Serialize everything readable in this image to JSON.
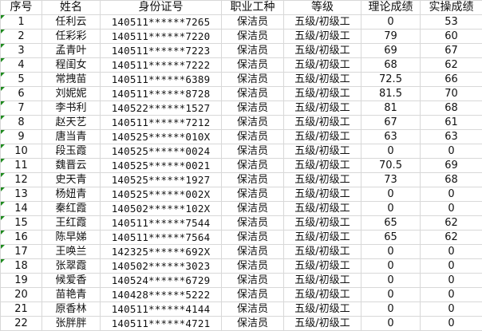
{
  "columns": [
    "序号",
    "姓名",
    "身份证号",
    "职业工种",
    "等级",
    "理论成绩",
    "实操成绩"
  ],
  "rows": [
    [
      "1",
      "任利云",
      "140511******7265",
      "保洁员",
      "五级/初级工",
      "0",
      "53"
    ],
    [
      "2",
      "任彩彩",
      "140511******7220",
      "保洁员",
      "五级/初级工",
      "79",
      "60"
    ],
    [
      "3",
      "孟青叶",
      "140511******7223",
      "保洁员",
      "五级/初级工",
      "69",
      "67"
    ],
    [
      "4",
      "程闺女",
      "140511******7222",
      "保洁员",
      "五级/初级工",
      "68",
      "62"
    ],
    [
      "5",
      "常拽苗",
      "140511******6389",
      "保洁员",
      "五级/初级工",
      "72.5",
      "66"
    ],
    [
      "6",
      "刘妮妮",
      "140511******8728",
      "保洁员",
      "五级/初级工",
      "81.5",
      "70"
    ],
    [
      "7",
      "李书利",
      "140522******1527",
      "保洁员",
      "五级/初级工",
      "81",
      "68"
    ],
    [
      "8",
      "赵天艺",
      "140511******7212",
      "保洁员",
      "五级/初级工",
      "67",
      "61"
    ],
    [
      "9",
      "唐当青",
      "140525******010X",
      "保洁员",
      "五级/初级工",
      "63",
      "63"
    ],
    [
      "10",
      "段玉霞",
      "140525******0024",
      "保洁员",
      "五级/初级工",
      "0",
      "0"
    ],
    [
      "11",
      "魏晋云",
      "140525******0021",
      "保洁员",
      "五级/初级工",
      "70.5",
      "69"
    ],
    [
      "12",
      "史天青",
      "140525******1927",
      "保洁员",
      "五级/初级工",
      "73",
      "68"
    ],
    [
      "13",
      "杨妞青",
      "140525******002X",
      "保洁员",
      "五级/初级工",
      "0",
      "0"
    ],
    [
      "14",
      "秦红霞",
      "140502******102X",
      "保洁员",
      "五级/初级工",
      "0",
      "0"
    ],
    [
      "15",
      "王红霞",
      "140511******7544",
      "保洁员",
      "五级/初级工",
      "65",
      "62"
    ],
    [
      "16",
      "陈早娣",
      "140511******7564",
      "保洁员",
      "五级/初级工",
      "65",
      "62"
    ],
    [
      "17",
      "王唤兰",
      "142325******692X",
      "保洁员",
      "五级/初级工",
      "0",
      "0"
    ],
    [
      "18",
      "张翠霞",
      "140502******3023",
      "保洁员",
      "五级/初级工",
      "0",
      "0"
    ],
    [
      "19",
      "候爱香",
      "140524******6729",
      "保洁员",
      "五级/初级工",
      "0",
      "0"
    ],
    [
      "20",
      "苗艳青",
      "140428******5222",
      "保洁员",
      "五级/初级工",
      "0",
      "0"
    ],
    [
      "21",
      "原香林",
      "140511******4144",
      "保洁员",
      "五级/初级工",
      "0",
      "0"
    ],
    [
      "22",
      "张胖胖",
      "140511******4721",
      "保洁员",
      "五级/初级工",
      "0",
      "0"
    ]
  ],
  "text_number_flag_rows": 18,
  "colors": {
    "grid": "#d8d8d8",
    "flag": "#1e8a1e"
  }
}
